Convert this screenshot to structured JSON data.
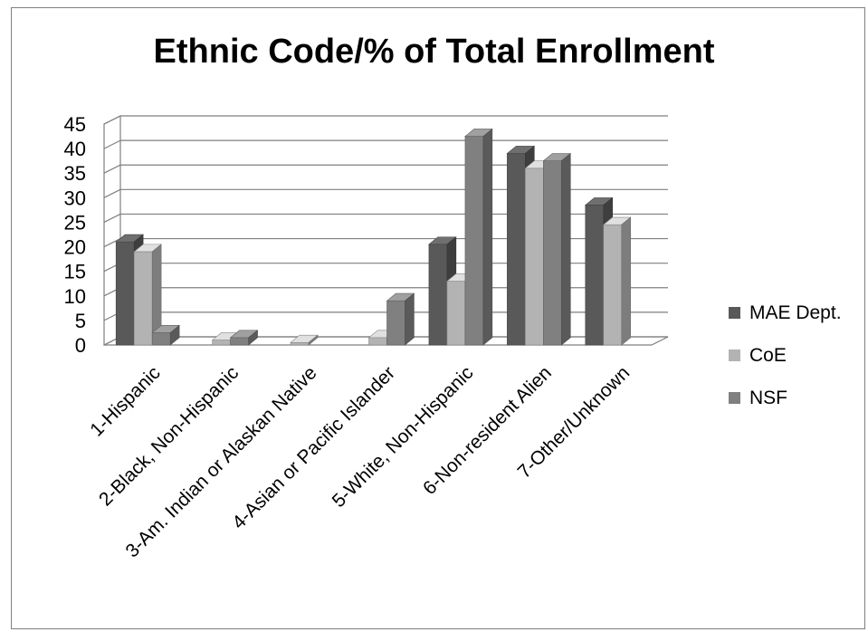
{
  "chart_data": {
    "type": "bar",
    "title": "Ethnic Code/% of Total Enrollment",
    "categories": [
      "1-Hispanic",
      "2-Black, Non-Hispanic",
      "3-Am. Indian or Alaskan Native",
      "4-Asian or Pacific Islander",
      "5-White, Non-Hispanic",
      "6-Non-resident Alien",
      "7-Other/Unknown"
    ],
    "series": [
      {
        "name": "MAE Dept.",
        "color": "#595959",
        "values": [
          21,
          0,
          0,
          0,
          20.5,
          39,
          28.5
        ]
      },
      {
        "name": "CoE",
        "color": "#b3b3b3",
        "values": [
          19,
          1,
          0.5,
          1.5,
          13,
          36,
          24.5
        ]
      },
      {
        "name": "NSF",
        "color": "#808080",
        "values": [
          2.5,
          1.5,
          0,
          9,
          42.5,
          37.5,
          0
        ]
      }
    ],
    "ylim": [
      0,
      45
    ],
    "yticks": [
      "0",
      "5",
      "10",
      "15",
      "20",
      "25",
      "30",
      "35",
      "40",
      "45"
    ],
    "grid": true,
    "legend": "right",
    "style": "3d-clustered-column"
  }
}
